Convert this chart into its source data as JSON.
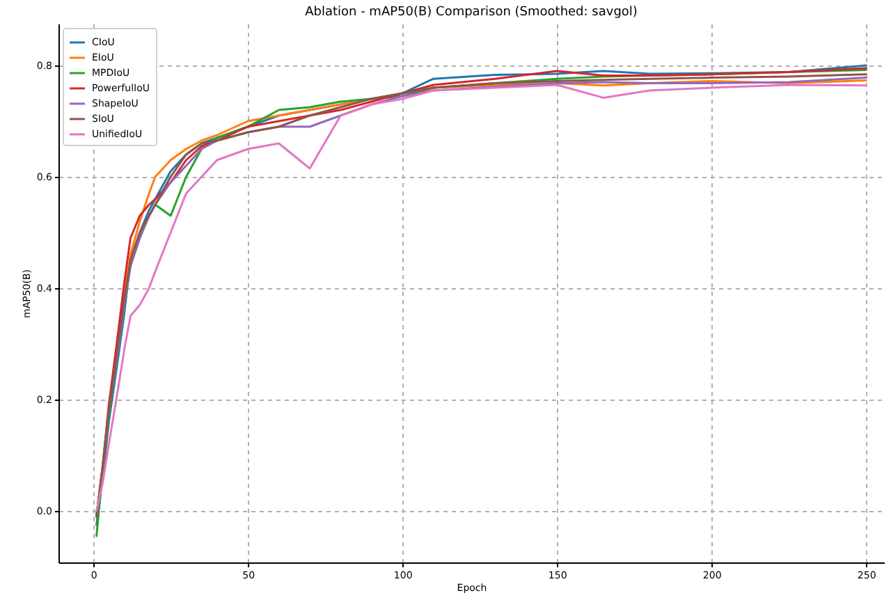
{
  "chart_data": {
    "type": "line",
    "title": "Ablation - mAP50(B) Comparison (Smoothed: savgol)",
    "xlabel": "Epoch",
    "ylabel": "mAP50(B)",
    "x": [
      1,
      3,
      5,
      8,
      10,
      12,
      15,
      18,
      20,
      25,
      30,
      35,
      40,
      50,
      60,
      70,
      80,
      90,
      100,
      110,
      130,
      150,
      165,
      180,
      200,
      225,
      250
    ],
    "series": [
      {
        "name": "CIoU",
        "color": "#1f77b4",
        "values": [
          -0.025,
          0.06,
          0.16,
          0.275,
          0.355,
          0.45,
          0.5,
          0.54,
          0.56,
          0.61,
          0.64,
          0.66,
          0.67,
          0.69,
          0.71,
          0.72,
          0.73,
          0.74,
          0.75,
          0.776,
          0.783,
          0.785,
          0.79,
          0.785,
          0.786,
          0.788,
          0.8
        ]
      },
      {
        "name": "EIoU",
        "color": "#ff7f0e",
        "values": [
          -0.01,
          0.08,
          0.19,
          0.31,
          0.39,
          0.46,
          0.52,
          0.57,
          0.6,
          0.63,
          0.65,
          0.665,
          0.675,
          0.7,
          0.71,
          0.72,
          0.73,
          0.74,
          0.745,
          0.76,
          0.765,
          0.768,
          0.764,
          0.768,
          0.772,
          0.768,
          0.773
        ]
      },
      {
        "name": "MPDIoU",
        "color": "#2ca02c",
        "values": [
          -0.045,
          0.07,
          0.17,
          0.29,
          0.37,
          0.44,
          0.49,
          0.53,
          0.55,
          0.53,
          0.6,
          0.65,
          0.67,
          0.69,
          0.72,
          0.725,
          0.735,
          0.74,
          0.745,
          0.76,
          0.768,
          0.776,
          0.78,
          0.782,
          0.784,
          0.788,
          0.792
        ]
      },
      {
        "name": "PowerfulIoU",
        "color": "#d62728",
        "values": [
          -0.01,
          0.08,
          0.19,
          0.32,
          0.41,
          0.49,
          0.53,
          0.55,
          0.56,
          0.59,
          0.63,
          0.655,
          0.665,
          0.69,
          0.7,
          0.71,
          0.72,
          0.735,
          0.75,
          0.765,
          0.776,
          0.79,
          0.782,
          0.782,
          0.784,
          0.788,
          0.795
        ]
      },
      {
        "name": "ShapeIoU",
        "color": "#9467bd",
        "values": [
          -0.01,
          0.08,
          0.18,
          0.29,
          0.37,
          0.44,
          0.49,
          0.53,
          0.55,
          0.59,
          0.62,
          0.65,
          0.665,
          0.68,
          0.69,
          0.69,
          0.71,
          0.73,
          0.745,
          0.755,
          0.762,
          0.768,
          0.77,
          0.768,
          0.768,
          0.77,
          0.778
        ]
      },
      {
        "name": "SIoU",
        "color": "#8c564b",
        "values": [
          -0.01,
          0.08,
          0.18,
          0.3,
          0.38,
          0.45,
          0.5,
          0.53,
          0.55,
          0.6,
          0.64,
          0.66,
          0.665,
          0.68,
          0.69,
          0.71,
          0.725,
          0.74,
          0.75,
          0.76,
          0.768,
          0.772,
          0.774,
          0.776,
          0.778,
          0.78,
          0.784
        ]
      },
      {
        "name": "UnifiedIoU",
        "color": "#e377c2",
        "values": [
          0.0,
          0.05,
          0.12,
          0.22,
          0.29,
          0.35,
          0.37,
          0.4,
          0.43,
          0.5,
          0.57,
          0.6,
          0.63,
          0.65,
          0.66,
          0.615,
          0.71,
          0.73,
          0.74,
          0.755,
          0.76,
          0.765,
          0.742,
          0.755,
          0.76,
          0.765,
          0.764
        ]
      }
    ],
    "xlim": [
      -11.3,
      255.8
    ],
    "ylim": [
      -0.0925,
      0.875
    ],
    "xticks": [
      0,
      50,
      100,
      150,
      200,
      250
    ],
    "yticks": [
      {
        "value": 0,
        "label": "0.0"
      },
      {
        "value": 0.2,
        "label": "0.2"
      },
      {
        "value": 0.4,
        "label": "0.4"
      },
      {
        "value": 0.6,
        "label": "0.6"
      },
      {
        "value": 0.8,
        "label": "0.8"
      }
    ],
    "grid": true,
    "legend": "top left",
    "line_style": "solid",
    "marker": "none"
  }
}
